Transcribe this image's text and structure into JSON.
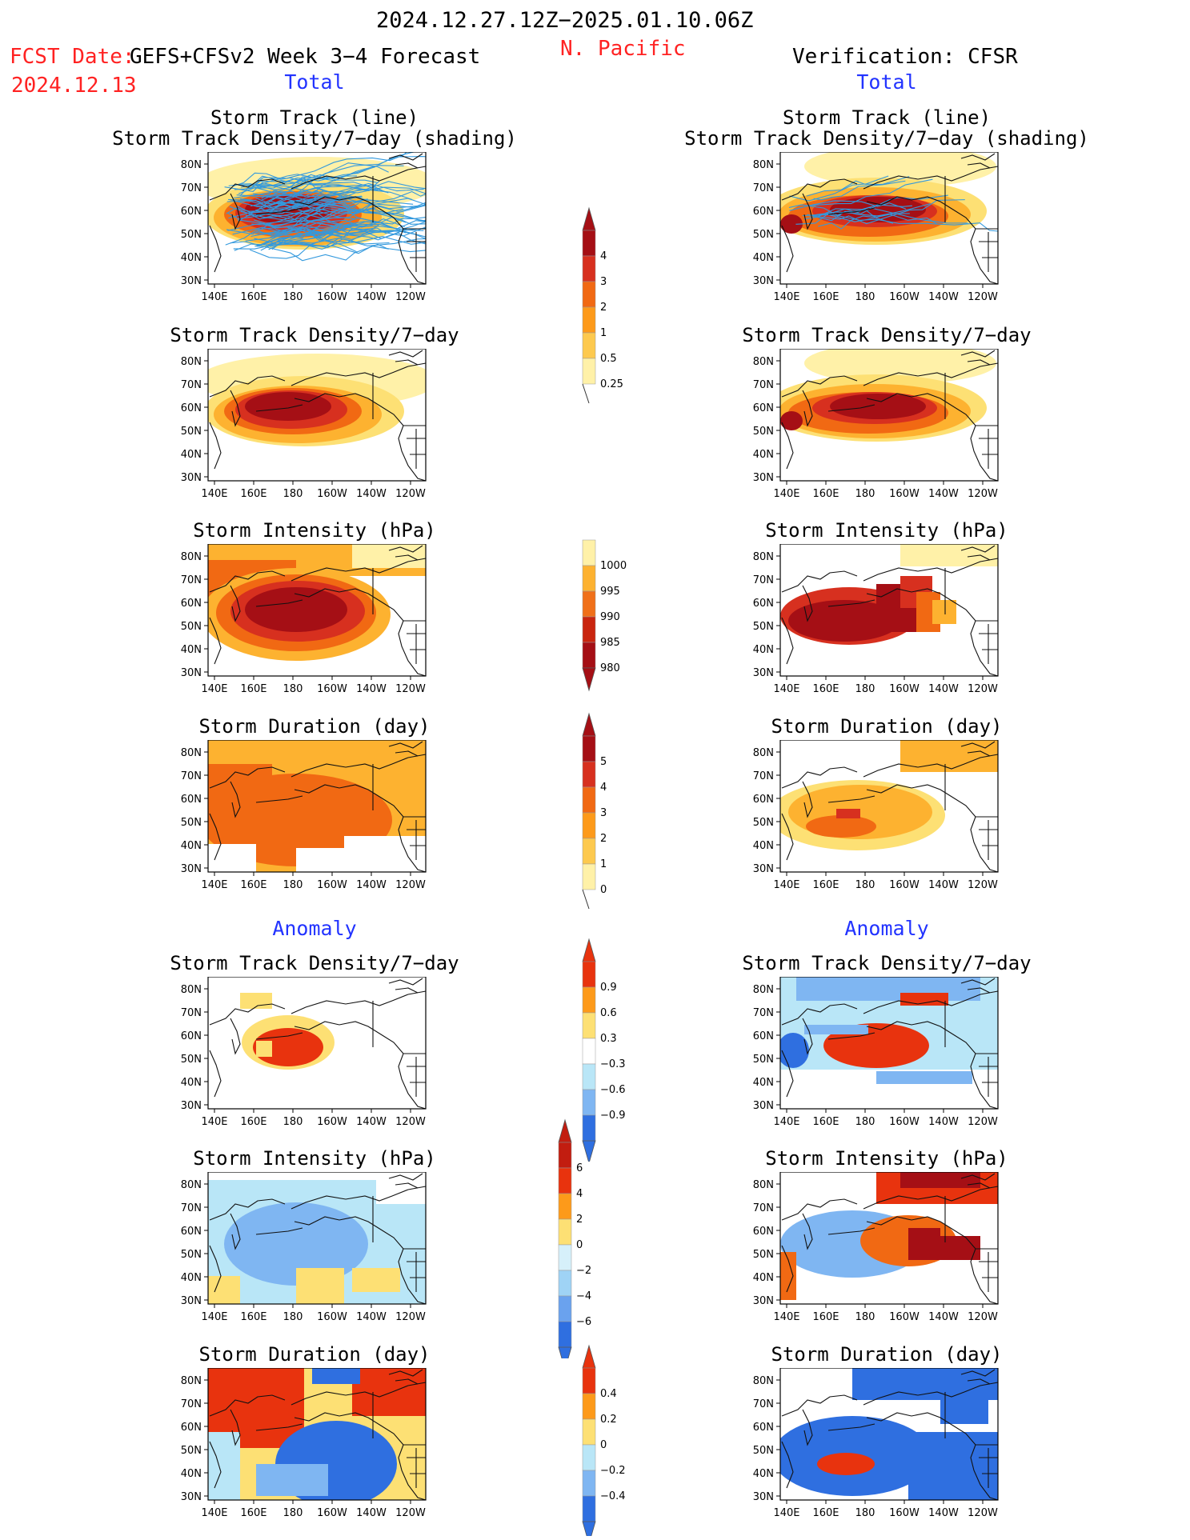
{
  "header": {
    "period": "2024.12.27.12Z−2025.01.10.06Z",
    "region": "N. Pacific",
    "fcst_label": "FCST Date:",
    "model_title": "GEFS+CFSv2 Week 3−4 Forecast",
    "fcst_date": "2024.12.13",
    "verification": "Verification: CFSR"
  },
  "columns": {
    "left_section": "Total",
    "right_section": "Total"
  },
  "sections": {
    "total": "Total",
    "anomaly": "Anomaly"
  },
  "panel_titles": {
    "storm_track_line": "Storm Track (line)",
    "storm_track_shading": "Storm Track Density/7−day (shading)",
    "track_density": "Storm Track Density/7−day",
    "intensity": "Storm Intensity (hPa)",
    "duration": "Storm Duration (day)"
  },
  "map_axes": {
    "lat_labels": [
      "80N",
      "70N",
      "60N",
      "50N",
      "40N",
      "30N"
    ],
    "lon_labels": [
      "140E",
      "160E",
      "180",
      "160W",
      "140W",
      "120W"
    ]
  },
  "colorbars": {
    "density_total": {
      "labels": [
        "4",
        "3",
        "2",
        "1",
        "0.5",
        "0.25"
      ],
      "colors": [
        "#a50f15",
        "#d7301f",
        "#f16913",
        "#fd9a1a",
        "#fdc94e",
        "#fff1a8"
      ]
    },
    "intensity_total": {
      "labels": [
        "1000",
        "995",
        "990",
        "985",
        "980"
      ],
      "colors": [
        "#fff1a8",
        "#fdb230",
        "#f07019",
        "#c9250f",
        "#a50f15"
      ]
    },
    "duration_total": {
      "labels": [
        "5",
        "4",
        "3",
        "2",
        "1",
        "0"
      ],
      "colors": [
        "#a50f15",
        "#d7301f",
        "#f16913",
        "#fd9a1a",
        "#fdc94e",
        "#fff1a8"
      ]
    },
    "density_anom": {
      "labels": [
        "0.9",
        "0.6",
        "0.3",
        "−0.3",
        "−0.6",
        "−0.9"
      ],
      "colors": [
        "#e8330e",
        "#fd9a1a",
        "#fde074",
        "#ffffff",
        "#b9e6f7",
        "#7fb6f2",
        "#2f6fe0"
      ]
    },
    "intensity_anom": {
      "labels": [
        "6",
        "4",
        "2",
        "0",
        "−2",
        "−4",
        "−6"
      ],
      "colors": [
        "#c21d10",
        "#e8330e",
        "#fd9a1a",
        "#fde074",
        "#d6f0fa",
        "#9fd3f5",
        "#6aa2ee",
        "#2f6fe0"
      ]
    },
    "duration_anom": {
      "labels": [
        "0.4",
        "0.2",
        "0",
        "−0.2",
        "−0.4"
      ],
      "colors": [
        "#e8330e",
        "#fd9a1a",
        "#fde074",
        "#b9e6f7",
        "#7fb6f2",
        "#2f6fe0"
      ]
    }
  },
  "palette": {
    "deep_red": "#a50f15",
    "red": "#d7301f",
    "orange": "#f16913",
    "light_orange": "#fdb230",
    "yellow": "#fde074",
    "pale_yellow": "#fff1a8",
    "light_blue": "#b9e6f7",
    "mid_blue": "#7fb6f2",
    "blue": "#2f6fe0",
    "track_line": "#3399dd"
  }
}
